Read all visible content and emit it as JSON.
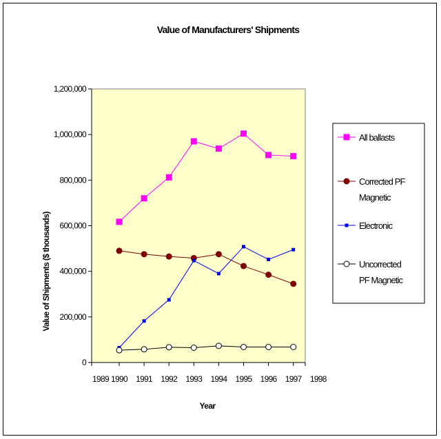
{
  "chart_data": {
    "type": "line",
    "title": "Value of Manufacturers' Shipments",
    "xlabel": "Year",
    "ylabel": "Value of Shipments ($ thousands)",
    "xlim": [
      1989,
      1998
    ],
    "ylim": [
      0,
      1200000
    ],
    "x_ticks": [
      "1989",
      "1990",
      "1991",
      "1992",
      "1993",
      "1994",
      "1995",
      "1996",
      "1997",
      "1998"
    ],
    "y_ticks": [
      "0",
      "200,000",
      "400,000",
      "600,000",
      "800,000",
      "1,000,000",
      "1,200,000"
    ],
    "grid": false,
    "legend_position": "right",
    "plot_background": "#ffffcc",
    "x": [
      1990,
      1991,
      1992,
      1993,
      1994,
      1995,
      1996,
      1997
    ],
    "series": [
      {
        "name": "All ballasts",
        "color": "#ff00ff",
        "marker": "square",
        "values": [
          617000,
          720000,
          812000,
          970000,
          938000,
          1004000,
          910000,
          905000
        ]
      },
      {
        "name": "Corrected PF Magnetic",
        "color": "#800000",
        "marker": "circle",
        "values": [
          490000,
          475000,
          465000,
          458000,
          475000,
          423000,
          385000,
          345000
        ]
      },
      {
        "name": "Electronic",
        "color": "#0000ff",
        "marker": "small-square",
        "values": [
          65000,
          182000,
          275000,
          447000,
          390000,
          508000,
          452000,
          495000
        ]
      },
      {
        "name": "Uncorrected PF Magnetic",
        "color": "#000000",
        "marker": "open-circle",
        "values": [
          54000,
          58000,
          67000,
          65000,
          73000,
          68000,
          68000,
          68000
        ]
      }
    ],
    "legend_lines": [
      [
        "All ballasts"
      ],
      [
        "Corrected PF",
        "Magnetic"
      ],
      [
        "Electronic"
      ],
      [
        "Uncorrected",
        "PF Magnetic"
      ]
    ]
  }
}
